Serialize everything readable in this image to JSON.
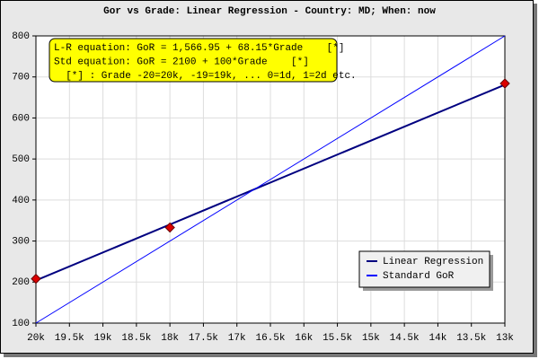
{
  "chart_data": {
    "type": "line",
    "title": "Gor vs Grade: Linear Regression - Country: MD; When: now",
    "annotations": [
      "L-R equation: GoR = 1,566.95 + 68.15*Grade    [*]",
      "Std equation: GoR = 2100 + 100*Grade    [*]",
      "  [*] : Grade -20=20k, -19=19k, ... 0=1d, 1=2d etc."
    ],
    "xlim": [
      -20,
      -13
    ],
    "xticks": [
      {
        "value": -20,
        "label": "20k"
      },
      {
        "value": -19.5,
        "label": "19.5k"
      },
      {
        "value": -19,
        "label": "19k"
      },
      {
        "value": -18.5,
        "label": "18.5k"
      },
      {
        "value": -18,
        "label": "18k"
      },
      {
        "value": -17.5,
        "label": "17.5k"
      },
      {
        "value": -17,
        "label": "17k"
      },
      {
        "value": -16.5,
        "label": "16.5k"
      },
      {
        "value": -16,
        "label": "16k"
      },
      {
        "value": -15.5,
        "label": "15.5k"
      },
      {
        "value": -15,
        "label": "15k"
      },
      {
        "value": -14.5,
        "label": "14.5k"
      },
      {
        "value": -14,
        "label": "14k"
      },
      {
        "value": -13.5,
        "label": "13.5k"
      },
      {
        "value": -13,
        "label": "13k"
      }
    ],
    "ylim": [
      100,
      800
    ],
    "yticks": [
      100,
      200,
      300,
      400,
      500,
      600,
      700,
      800
    ],
    "grid": true,
    "legend": "lower-right",
    "series": [
      {
        "name": "Linear Regression",
        "color": "#000080",
        "x": [
          -20,
          -13
        ],
        "values": [
          204,
          681
        ]
      },
      {
        "name": "Standard GoR",
        "color": "#0000ff",
        "x": [
          -20,
          -13
        ],
        "values": [
          100,
          800
        ]
      }
    ],
    "points": {
      "color": "#dd0000",
      "x": [
        -20,
        -18,
        -13
      ],
      "values": [
        208,
        333,
        684
      ]
    }
  }
}
